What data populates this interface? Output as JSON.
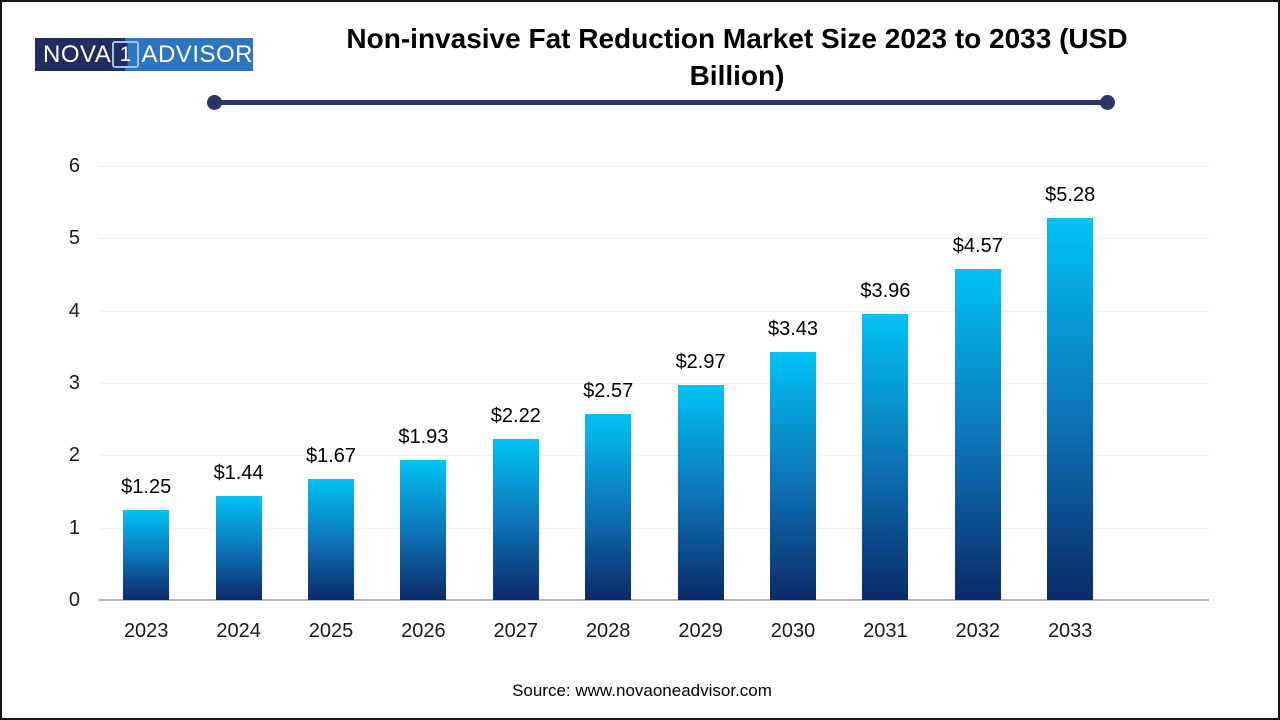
{
  "logo": {
    "text_left": "NOVA",
    "text_one": "1",
    "text_right": "ADVISOR",
    "dark_color": "#202d5e",
    "blue_color": "#2e74c0"
  },
  "title": {
    "line1": "Non-invasive Fat Reduction Market Size 2023 to 2033 (USD",
    "line2": "Billion)"
  },
  "footer": {
    "source": "Source: www.novaoneadvisor.com"
  },
  "chart_data": {
    "type": "bar",
    "title": "Non-invasive Fat Reduction Market Size 2023 to 2033 (USD Billion)",
    "categories": [
      "2023",
      "2024",
      "2025",
      "2026",
      "2027",
      "2028",
      "2029",
      "2030",
      "2031",
      "2032",
      "2033"
    ],
    "values": [
      1.25,
      1.44,
      1.67,
      1.93,
      2.22,
      2.57,
      2.97,
      3.43,
      3.96,
      4.57,
      5.28
    ],
    "value_labels": [
      "$1.25",
      "$1.44",
      "$1.67",
      "$1.93",
      "$2.22",
      "$2.57",
      "$2.97",
      "$3.43",
      "$3.96",
      "$4.57",
      "$5.28"
    ],
    "xlabel": "",
    "ylabel": "",
    "ylim": [
      0,
      6
    ],
    "yticks": [
      "0",
      "1",
      "2",
      "3",
      "4",
      "5",
      "6"
    ],
    "grid": true,
    "legend": false,
    "bar_gradient_top": "#00c3f3",
    "bar_gradient_mid": "#0d77ba",
    "bar_gradient_bottom": "#0b2a68",
    "grid_color": "#efefef",
    "axis_line_color": "#b3b3b3",
    "divider_color": "#2a3764"
  }
}
